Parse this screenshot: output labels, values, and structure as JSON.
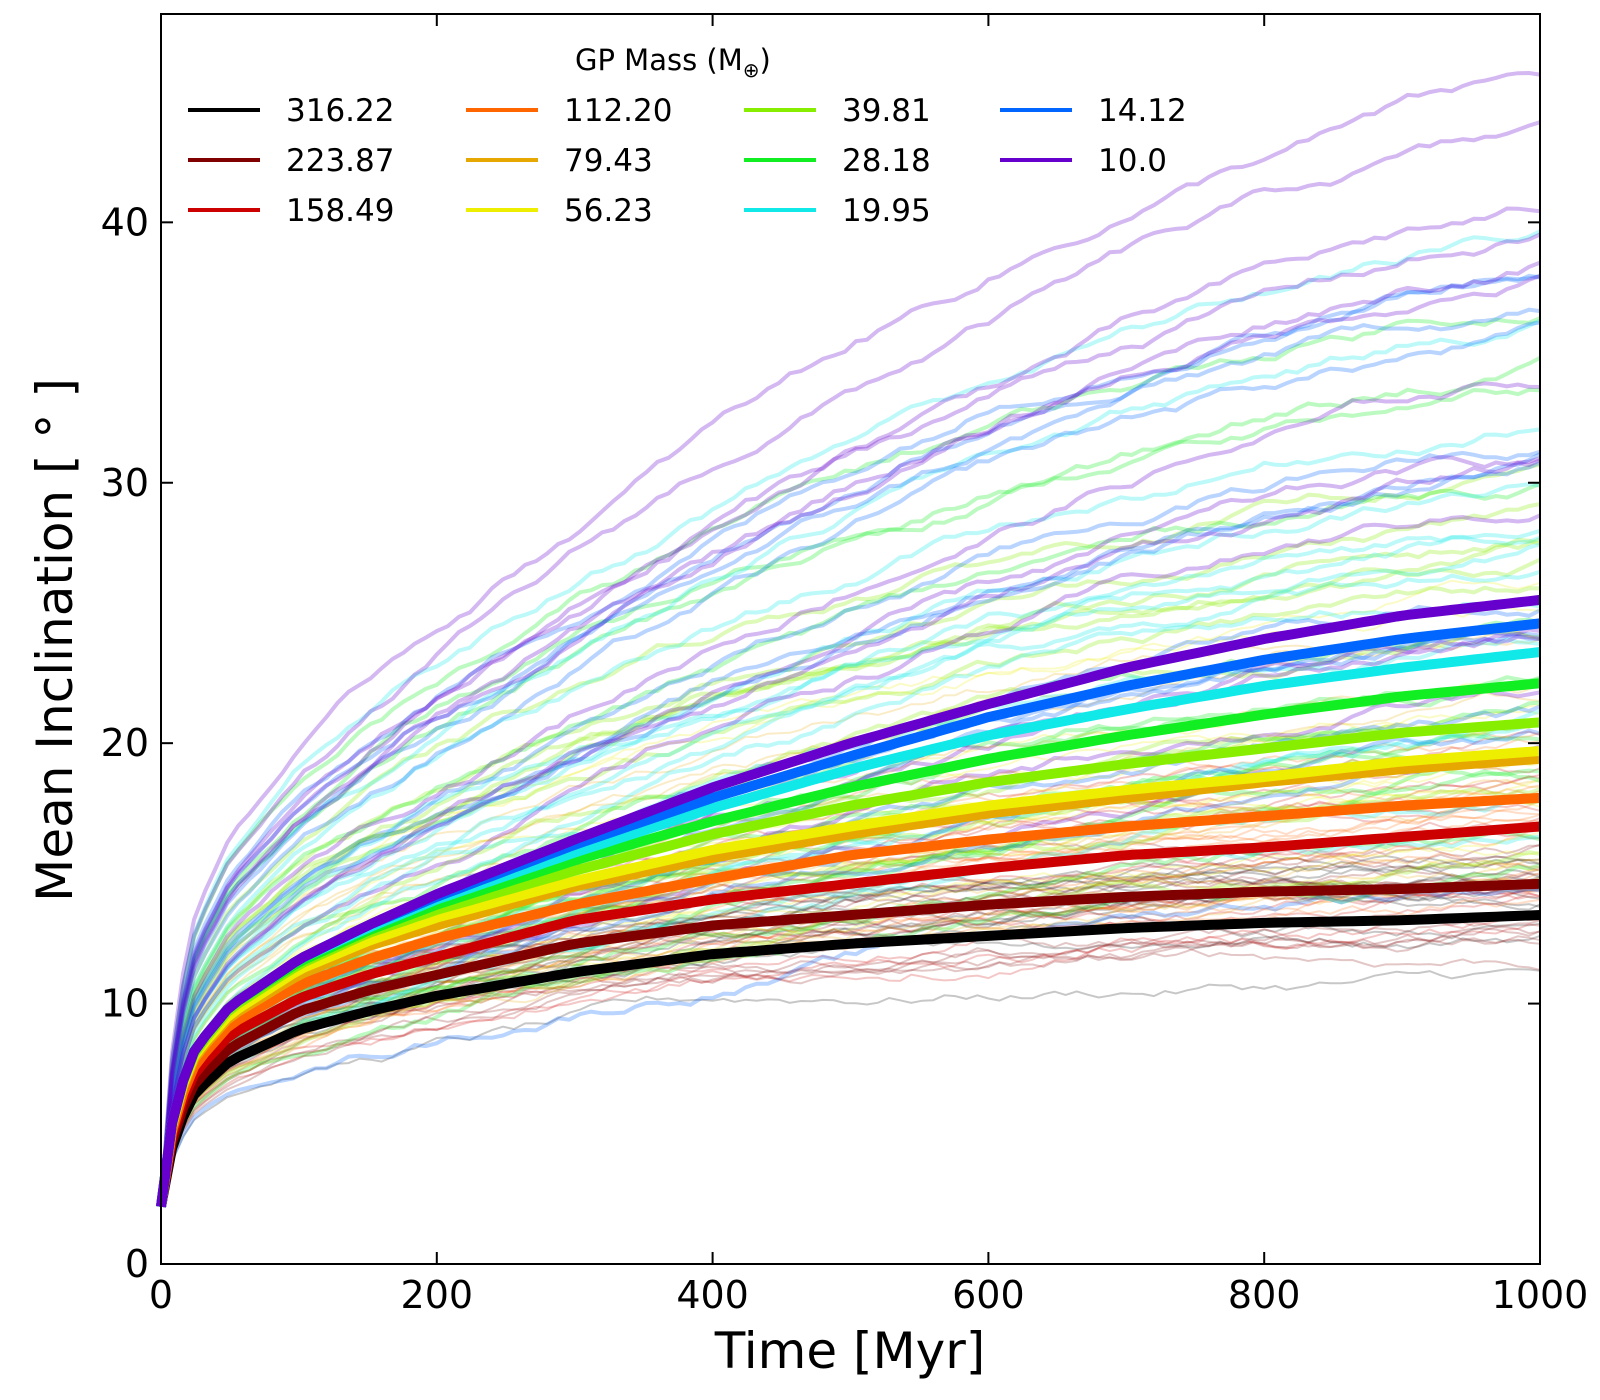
{
  "chart_data": {
    "type": "line",
    "xlabel": "Time [Myr]",
    "ylabel": "Mean Inclination [ ° ]",
    "xlim": [
      0,
      1000
    ],
    "ylim": [
      0,
      48
    ],
    "x_ticks": [
      "0",
      "200",
      "400",
      "600",
      "800",
      "1000"
    ],
    "y_ticks": [
      "0",
      "10",
      "20",
      "30",
      "40"
    ],
    "grid": false,
    "tick_direction": "in",
    "legend": {
      "title_prefix": "GP Mass (M",
      "title_symbol": "⊕",
      "title_suffix": ")",
      "placement": "top-left",
      "columns": 4
    },
    "x": [
      0,
      10,
      25,
      50,
      100,
      150,
      200,
      300,
      400,
      500,
      600,
      700,
      800,
      900,
      1000
    ],
    "series": [
      {
        "name": "316.22",
        "color": "#000000",
        "values": [
          2.2,
          5.0,
          6.6,
          7.8,
          9.0,
          9.7,
          10.3,
          11.2,
          11.9,
          12.3,
          12.6,
          12.9,
          13.1,
          13.2,
          13.4
        ]
      },
      {
        "name": "223.87",
        "color": "#800000",
        "values": [
          2.2,
          5.3,
          7.0,
          8.3,
          9.7,
          10.5,
          11.1,
          12.3,
          13.0,
          13.4,
          13.8,
          14.1,
          14.3,
          14.4,
          14.6
        ]
      },
      {
        "name": "158.49",
        "color": "#cc0000",
        "values": [
          2.2,
          5.6,
          7.4,
          8.8,
          10.2,
          11.1,
          11.8,
          13.2,
          14.0,
          14.6,
          15.2,
          15.7,
          16.0,
          16.4,
          16.8
        ]
      },
      {
        "name": "112.20",
        "color": "#ff6600",
        "values": [
          2.2,
          5.8,
          7.7,
          9.2,
          10.7,
          11.7,
          12.5,
          13.8,
          14.8,
          15.7,
          16.3,
          16.8,
          17.2,
          17.6,
          17.9
        ]
      },
      {
        "name": "79.43",
        "color": "#e6a800",
        "values": [
          2.2,
          6.0,
          8.0,
          9.5,
          11.1,
          12.2,
          13.0,
          14.5,
          15.6,
          16.5,
          17.3,
          17.9,
          18.5,
          19.0,
          19.4
        ]
      },
      {
        "name": "56.23",
        "color": "#eeee00",
        "values": [
          2.2,
          6.1,
          8.1,
          9.6,
          11.3,
          12.4,
          13.3,
          14.7,
          15.9,
          16.8,
          17.6,
          18.2,
          18.7,
          19.3,
          19.7
        ]
      },
      {
        "name": "39.81",
        "color": "#88ee00",
        "values": [
          2.2,
          6.2,
          8.2,
          9.8,
          11.5,
          12.7,
          13.6,
          15.1,
          16.5,
          17.6,
          18.5,
          19.2,
          19.8,
          20.4,
          20.8
        ]
      },
      {
        "name": "28.18",
        "color": "#11ee22",
        "values": [
          2.2,
          6.2,
          8.3,
          9.9,
          11.6,
          12.8,
          13.8,
          15.5,
          17.0,
          18.3,
          19.4,
          20.3,
          21.1,
          21.8,
          22.3
        ]
      },
      {
        "name": "19.95",
        "color": "#11e8e8",
        "values": [
          2.2,
          6.2,
          8.3,
          9.9,
          11.7,
          12.9,
          14.0,
          15.8,
          17.5,
          19.0,
          20.3,
          21.3,
          22.2,
          22.9,
          23.5
        ]
      },
      {
        "name": "14.12",
        "color": "#0066ff",
        "values": [
          2.2,
          6.2,
          8.3,
          9.9,
          11.7,
          13.0,
          14.1,
          16.1,
          17.9,
          19.5,
          21.0,
          22.2,
          23.2,
          24.0,
          24.6
        ]
      },
      {
        "name": "10.0",
        "color": "#6600cc",
        "values": [
          2.2,
          6.2,
          8.3,
          9.9,
          11.7,
          13.0,
          14.2,
          16.3,
          18.3,
          20.0,
          21.5,
          22.9,
          24.0,
          24.9,
          25.5
        ]
      }
    ]
  }
}
